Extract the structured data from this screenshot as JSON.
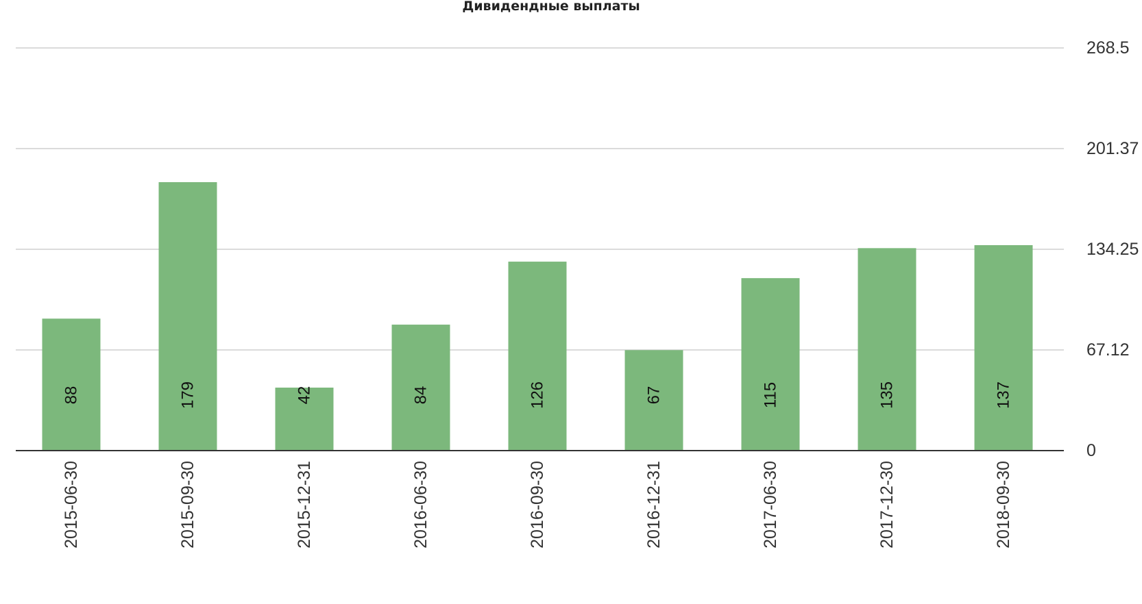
{
  "chart_data": {
    "type": "bar",
    "title": "Дивидендные выплаты",
    "xlabel": "",
    "ylabel": "",
    "categories": [
      "2015-06-30",
      "2015-09-30",
      "2015-12-31",
      "2016-06-30",
      "2016-09-30",
      "2016-12-31",
      "2017-06-30",
      "2017-12-30",
      "2018-09-30"
    ],
    "values": [
      88,
      179,
      42,
      84,
      126,
      67,
      115,
      135,
      137
    ],
    "data_labels": [
      "88",
      "179",
      "42",
      "84",
      "126",
      "67",
      "115",
      "135",
      "137"
    ],
    "ylim": [
      0,
      268.5
    ],
    "y_ticks": [
      0,
      67.12,
      134.25,
      201.37,
      268.5
    ],
    "y_tick_labels": [
      "0",
      "67.12",
      "134.25",
      "201.37",
      "268.5"
    ],
    "y_axis_position": "right",
    "grid": true,
    "legend": "none",
    "bar_color": "#7cb87c",
    "gridline_color": "#cfcfcf",
    "baseline_color": "#333333"
  }
}
